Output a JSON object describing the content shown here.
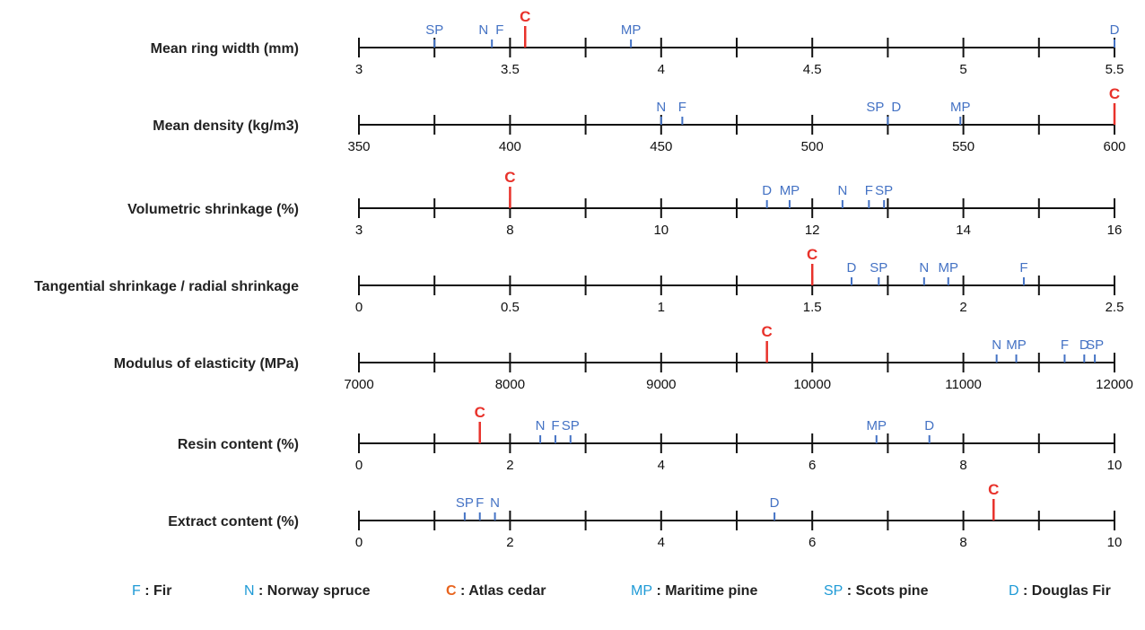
{
  "colors": {
    "axis": "#111111",
    "marker": "#4472c4",
    "highlight": "#e8322b",
    "legend_highlight": "#e8641e",
    "legend_code": "#1e9ad6"
  },
  "legend": [
    {
      "code": "F",
      "sep": " : ",
      "name": "Fir"
    },
    {
      "code": "N",
      "sep": " : ",
      "name": "Norway spruce"
    },
    {
      "code": "C",
      "sep": " : ",
      "name": "Atlas cedar",
      "highlight": true
    },
    {
      "code": "MP",
      "sep": " : ",
      "name": "Maritime pine"
    },
    {
      "code": "SP",
      "sep": " : ",
      "name": "Scots pine"
    },
    {
      "code": "D",
      "sep": " : ",
      "name": "Douglas Fir"
    }
  ],
  "chart_data": {
    "type": "scatter",
    "title": "",
    "rows": [
      {
        "label": "Mean ring width (mm)",
        "ticks": [
          3,
          3.5,
          4,
          4.5,
          5,
          5.5
        ],
        "tick_labels": [
          "3",
          "3.5",
          "4",
          "4.5",
          "5",
          "5.5"
        ],
        "points": [
          {
            "species": "SP",
            "value": 3.25
          },
          {
            "species": "N",
            "value": 3.44
          },
          {
            "species": "F",
            "value": 3.44
          },
          {
            "species": "C",
            "value": 3.55
          },
          {
            "species": "MP",
            "value": 3.9
          },
          {
            "species": "D",
            "value": 5.5
          }
        ]
      },
      {
        "label": "Mean density (kg/m3)",
        "ticks": [
          350,
          400,
          450,
          500,
          550,
          600
        ],
        "tick_labels": [
          "350",
          "400",
          "450",
          "500",
          "550",
          "600"
        ],
        "points": [
          {
            "species": "N",
            "value": 450
          },
          {
            "species": "F",
            "value": 457
          },
          {
            "species": "SP",
            "value": 525
          },
          {
            "species": "D",
            "value": 525
          },
          {
            "species": "MP",
            "value": 549
          },
          {
            "species": "C",
            "value": 600
          }
        ]
      },
      {
        "label": "Volumetric shrinkage (%)",
        "ticks": [
          3,
          8,
          10,
          12,
          14,
          16
        ],
        "tick_labels": [
          "3",
          "8",
          "10",
          "12",
          "14",
          "16"
        ],
        "points": [
          {
            "species": "C",
            "value": 8.0
          },
          {
            "species": "D",
            "value": 11.4
          },
          {
            "species": "MP",
            "value": 11.7
          },
          {
            "species": "N",
            "value": 12.4
          },
          {
            "species": "F",
            "value": 12.75
          },
          {
            "species": "SP",
            "value": 12.95
          }
        ]
      },
      {
        "label": "Tangential shrinkage / radial shrinkage",
        "ticks": [
          0,
          0.5,
          1,
          1.5,
          2,
          2.5
        ],
        "tick_labels": [
          "0",
          "0.5",
          "1",
          "1.5",
          "2",
          "2.5"
        ],
        "points": [
          {
            "species": "C",
            "value": 1.5
          },
          {
            "species": "D",
            "value": 1.63
          },
          {
            "species": "SP",
            "value": 1.72
          },
          {
            "species": "N",
            "value": 1.87
          },
          {
            "species": "MP",
            "value": 1.95
          },
          {
            "species": "F",
            "value": 2.2
          }
        ]
      },
      {
        "label": "Modulus of elasticity (MPa)",
        "ticks": [
          7000,
          8000,
          9000,
          10000,
          11000,
          12000
        ],
        "tick_labels": [
          "7000",
          "8000",
          "9000",
          "10000",
          "11000",
          "12000"
        ],
        "points": [
          {
            "species": "C",
            "value": 9700
          },
          {
            "species": "N",
            "value": 11220
          },
          {
            "species": "MP",
            "value": 11350
          },
          {
            "species": "F",
            "value": 11670
          },
          {
            "species": "D",
            "value": 11800
          },
          {
            "species": "SP",
            "value": 11870
          }
        ]
      },
      {
        "label": "Resin content (%)",
        "ticks": [
          0,
          2,
          4,
          6,
          8,
          10
        ],
        "tick_labels": [
          "0",
          "2",
          "4",
          "6",
          "8",
          "10"
        ],
        "points": [
          {
            "species": "C",
            "value": 1.6
          },
          {
            "species": "N",
            "value": 2.4
          },
          {
            "species": "F",
            "value": 2.6
          },
          {
            "species": "SP",
            "value": 2.8
          },
          {
            "species": "MP",
            "value": 6.85
          },
          {
            "species": "D",
            "value": 7.55
          }
        ]
      },
      {
        "label": "Extract content (%)",
        "ticks": [
          0,
          2,
          4,
          6,
          8,
          10
        ],
        "tick_labels": [
          "0",
          "2",
          "4",
          "6",
          "8",
          "10"
        ],
        "points": [
          {
            "species": "SP",
            "value": 1.4
          },
          {
            "species": "F",
            "value": 1.6
          },
          {
            "species": "N",
            "value": 1.8
          },
          {
            "species": "D",
            "value": 5.5
          },
          {
            "species": "C",
            "value": 8.4
          }
        ]
      }
    ]
  }
}
